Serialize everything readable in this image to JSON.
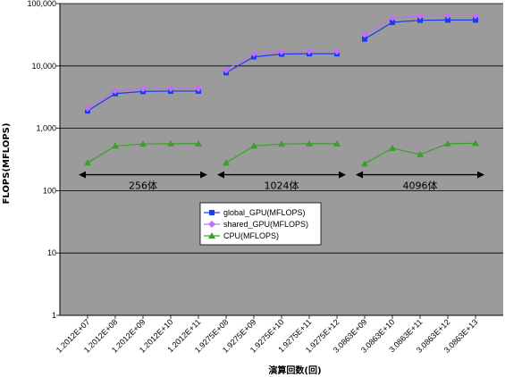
{
  "chart_data": {
    "type": "line",
    "yscale": "log",
    "ylim": [
      1,
      100000
    ],
    "ylabel": "FLOPS(MFLOPS)",
    "xlabel": "演算回数(回)",
    "y_tick_labels": [
      "1",
      "10",
      "100",
      "1,000",
      "10,000",
      "100,000"
    ],
    "categories": [
      "1.2012E+07",
      "1.2012E+08",
      "1.2012E+09",
      "1.2012E+10",
      "1.2012E+11",
      "1.9275E+08",
      "1.9275E+09",
      "1.9275E+10",
      "1.9275E+11",
      "1.9275E+12",
      "3.0863E+09",
      "3.0863E+10",
      "3.0863E+11",
      "3.0863E+12",
      "3.0863E+13"
    ],
    "series": [
      {
        "name": "global_GPU(MFLOPS)",
        "color": "#1a3cf0",
        "marker": "square",
        "values": [
          1900,
          3600,
          3900,
          3950,
          3950,
          7800,
          14000,
          15500,
          15700,
          15700,
          27000,
          50000,
          54000,
          54500,
          54500
        ]
      },
      {
        "name": "shared_GPU(MFLOPS)",
        "color": "#c070f0",
        "marker": "diamond",
        "values": [
          2100,
          4000,
          4300,
          4350,
          4350,
          8600,
          15800,
          17000,
          17200,
          17200,
          32000,
          59000,
          63000,
          64000,
          64000
        ]
      },
      {
        "name": "CPU(MFLOPS)",
        "color": "#3aa02a",
        "marker": "triangle",
        "values": [
          280,
          520,
          560,
          565,
          565,
          280,
          520,
          560,
          565,
          565,
          270,
          480,
          380,
          565,
          575
        ]
      }
    ],
    "groups": [
      {
        "start": 0,
        "end": 4,
        "label": "256体"
      },
      {
        "start": 5,
        "end": 9,
        "label": "1024体"
      },
      {
        "start": 10,
        "end": 14,
        "label": "4096体"
      }
    ],
    "grid": true,
    "legend_position": "center"
  }
}
